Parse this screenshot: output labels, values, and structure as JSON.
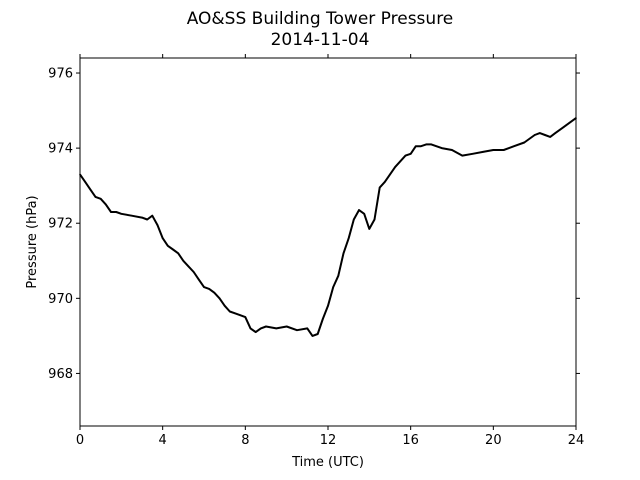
{
  "chart_data": {
    "type": "line",
    "title": "AO&SS Building Tower Pressure",
    "subtitle": "2014-11-04",
    "xlabel": "Time (UTC)",
    "ylabel": "Pressure (hPa)",
    "xlim": [
      0,
      24
    ],
    "ylim": [
      966.6,
      976.4
    ],
    "xticks": [
      0,
      4,
      8,
      12,
      16,
      20,
      24
    ],
    "yticks": [
      968,
      970,
      972,
      974,
      976
    ],
    "grid": false,
    "line_color": "#000000",
    "series": [
      {
        "x": [
          0,
          0.25,
          0.5,
          0.75,
          1,
          1.25,
          1.5,
          1.75,
          2,
          2.5,
          3,
          3.25,
          3.5,
          3.75,
          4,
          4.25,
          4.5,
          4.75,
          5,
          5.25,
          5.5,
          5.75,
          6,
          6.25,
          6.5,
          6.75,
          7,
          7.25,
          7.5,
          7.75,
          8,
          8.25,
          8.5,
          8.75,
          9,
          9.5,
          10,
          10.5,
          11,
          11.25,
          11.5,
          11.75,
          12,
          12.25,
          12.5,
          12.75,
          13,
          13.25,
          13.5,
          13.75,
          14,
          14.25,
          14.5,
          14.75,
          15,
          15.25,
          15.5,
          15.75,
          16,
          16.25,
          16.5,
          16.75,
          17,
          17.5,
          18,
          18.5,
          19,
          19.5,
          20,
          20.5,
          21,
          21.5,
          22,
          22.25,
          22.5,
          22.75,
          23,
          23.5,
          24
        ],
        "y": [
          973.3,
          973.1,
          972.9,
          972.7,
          972.65,
          972.5,
          972.3,
          972.3,
          972.25,
          972.2,
          972.15,
          972.1,
          972.2,
          971.95,
          971.6,
          971.4,
          971.3,
          971.2,
          971.0,
          970.85,
          970.7,
          970.5,
          970.3,
          970.25,
          970.15,
          970.0,
          969.8,
          969.65,
          969.6,
          969.55,
          969.5,
          969.2,
          969.1,
          969.2,
          969.25,
          969.2,
          969.25,
          969.15,
          969.2,
          969.0,
          969.05,
          969.45,
          969.8,
          970.3,
          970.6,
          971.2,
          971.6,
          972.1,
          972.35,
          972.25,
          971.85,
          972.1,
          972.95,
          973.1,
          973.3,
          973.5,
          973.65,
          973.8,
          973.85,
          974.05,
          974.05,
          974.1,
          974.1,
          974.0,
          973.95,
          973.8,
          973.85,
          973.9,
          973.95,
          973.95,
          974.05,
          974.15,
          974.35,
          974.4,
          974.35,
          974.3,
          974.4,
          974.6,
          974.8
        ]
      }
    ]
  }
}
